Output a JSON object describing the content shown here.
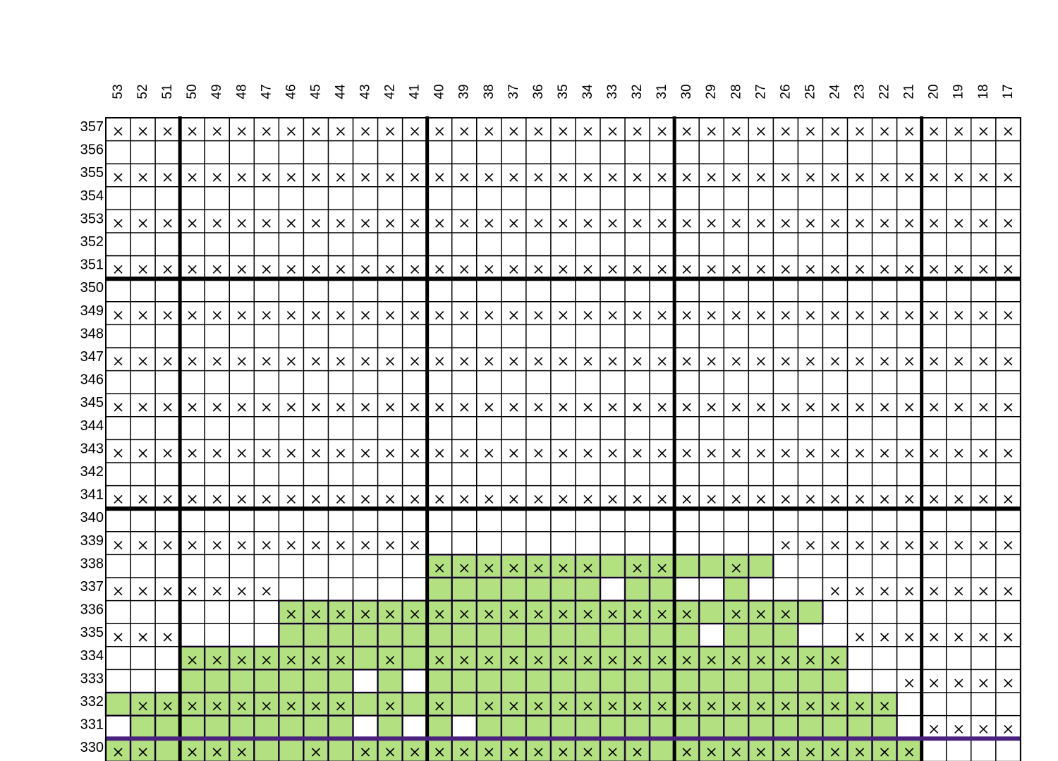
{
  "columns": [
    53,
    52,
    51,
    50,
    49,
    48,
    47,
    46,
    45,
    44,
    43,
    42,
    41,
    40,
    39,
    38,
    37,
    36,
    35,
    34,
    33,
    32,
    31,
    30,
    29,
    28,
    27,
    26,
    25,
    24,
    23,
    22,
    21,
    20,
    19,
    18,
    17
  ],
  "rows": [
    357,
    356,
    355,
    354,
    353,
    352,
    351,
    350,
    349,
    348,
    347,
    346,
    345,
    344,
    343,
    342,
    341,
    340,
    339,
    338,
    337,
    336,
    335,
    334,
    333,
    332,
    331,
    330
  ],
  "row_marks": {
    "357": [
      53,
      52,
      51,
      50,
      49,
      48,
      47,
      46,
      45,
      44,
      43,
      42,
      41,
      40,
      39,
      38,
      37,
      36,
      35,
      34,
      33,
      32,
      31,
      30,
      29,
      28,
      27,
      26,
      25,
      24,
      23,
      22,
      21,
      20,
      19,
      18,
      17
    ],
    "355": [
      53,
      52,
      51,
      50,
      49,
      48,
      47,
      46,
      45,
      44,
      43,
      42,
      41,
      40,
      39,
      38,
      37,
      36,
      35,
      34,
      33,
      32,
      31,
      30,
      29,
      28,
      27,
      26,
      25,
      24,
      23,
      22,
      21,
      20,
      19,
      18,
      17
    ],
    "353": [
      53,
      52,
      51,
      50,
      49,
      48,
      47,
      46,
      45,
      44,
      43,
      42,
      41,
      40,
      39,
      38,
      37,
      36,
      35,
      34,
      33,
      32,
      31,
      30,
      29,
      28,
      27,
      26,
      25,
      24,
      23,
      22,
      21,
      20,
      19,
      18,
      17
    ],
    "351": [
      53,
      52,
      51,
      50,
      49,
      48,
      47,
      46,
      45,
      44,
      43,
      42,
      41,
      40,
      39,
      38,
      37,
      36,
      35,
      34,
      33,
      32,
      31,
      30,
      29,
      28,
      27,
      26,
      25,
      24,
      23,
      22,
      21,
      20,
      19,
      18,
      17
    ],
    "349": [
      53,
      52,
      51,
      50,
      49,
      48,
      47,
      46,
      45,
      44,
      43,
      42,
      41,
      40,
      39,
      38,
      37,
      36,
      35,
      34,
      33,
      32,
      31,
      30,
      29,
      28,
      27,
      26,
      25,
      24,
      23,
      22,
      21,
      20,
      19,
      18,
      17
    ],
    "347": [
      53,
      52,
      51,
      50,
      49,
      48,
      47,
      46,
      45,
      44,
      43,
      42,
      41,
      40,
      39,
      38,
      37,
      36,
      35,
      34,
      33,
      32,
      31,
      30,
      29,
      28,
      27,
      26,
      25,
      24,
      23,
      22,
      21,
      20,
      19,
      18,
      17
    ],
    "345": [
      53,
      52,
      51,
      50,
      49,
      48,
      47,
      46,
      45,
      44,
      43,
      42,
      41,
      40,
      39,
      38,
      37,
      36,
      35,
      34,
      33,
      32,
      31,
      30,
      29,
      28,
      27,
      26,
      25,
      24,
      23,
      22,
      21,
      20,
      19,
      18,
      17
    ],
    "343": [
      53,
      52,
      51,
      50,
      49,
      48,
      47,
      46,
      45,
      44,
      43,
      42,
      41,
      40,
      39,
      38,
      37,
      36,
      35,
      34,
      33,
      32,
      31,
      30,
      29,
      28,
      27,
      26,
      25,
      24,
      23,
      22,
      21,
      20,
      19,
      18,
      17
    ],
    "341": [
      53,
      52,
      51,
      50,
      49,
      48,
      47,
      46,
      45,
      44,
      43,
      42,
      41,
      40,
      39,
      38,
      37,
      36,
      35,
      34,
      33,
      32,
      31,
      30,
      29,
      28,
      27,
      26,
      25,
      24,
      23,
      22,
      21,
      20,
      19,
      18,
      17
    ],
    "339": [
      53,
      52,
      51,
      50,
      49,
      48,
      47,
      46,
      45,
      44,
      43,
      42,
      41,
      26,
      25,
      24,
      23,
      22,
      21,
      20,
      19,
      18,
      17
    ],
    "338": [
      40,
      39,
      38,
      37,
      36,
      35,
      34,
      32,
      31,
      28
    ],
    "337": [
      53,
      52,
      51,
      50,
      49,
      48,
      47,
      24,
      23,
      22,
      21,
      20,
      19,
      18,
      17
    ],
    "336": [
      46,
      45,
      44,
      43,
      42,
      41,
      40,
      39,
      38,
      37,
      36,
      35,
      34,
      33,
      32,
      31,
      30,
      28,
      27,
      26
    ],
    "335": [
      53,
      52,
      51,
      23,
      22,
      21,
      20,
      19,
      18,
      17
    ],
    "334": [
      50,
      49,
      48,
      47,
      46,
      45,
      44,
      42,
      40,
      39,
      38,
      37,
      36,
      35,
      34,
      33,
      32,
      31,
      30,
      29,
      28,
      27,
      26,
      25,
      24
    ],
    "333": [
      21,
      20,
      19,
      18,
      17
    ],
    "332": [
      52,
      51,
      50,
      49,
      48,
      47,
      46,
      45,
      44,
      42,
      40,
      38,
      37,
      36,
      35,
      34,
      33,
      32,
      31,
      30,
      29,
      28,
      27,
      26,
      25,
      24,
      23,
      22
    ],
    "331": [
      20,
      19,
      18,
      17
    ],
    "330": [
      53,
      52,
      50,
      49,
      48,
      45,
      43,
      42,
      41,
      40,
      39,
      38,
      37,
      36,
      35,
      34,
      33,
      32,
      30,
      29,
      28,
      27,
      26,
      25,
      24,
      23,
      22,
      21
    ]
  },
  "highlight_cells": {
    "338": [
      40,
      39,
      38,
      37,
      36,
      35,
      34,
      33,
      32,
      31,
      30,
      29,
      28,
      27
    ],
    "337": [
      40,
      39,
      38,
      37,
      36,
      35,
      34,
      32,
      31,
      28
    ],
    "336": [
      46,
      45,
      44,
      43,
      42,
      41,
      40,
      39,
      38,
      37,
      36,
      35,
      34,
      33,
      32,
      31,
      30,
      29,
      28,
      27,
      26,
      25
    ],
    "335": [
      46,
      45,
      44,
      43,
      42,
      41,
      40,
      39,
      38,
      37,
      36,
      35,
      34,
      33,
      32,
      31,
      30,
      28,
      27,
      26
    ],
    "334": [
      50,
      49,
      48,
      47,
      46,
      45,
      44,
      43,
      42,
      41,
      40,
      39,
      38,
      37,
      36,
      35,
      34,
      33,
      32,
      31,
      30,
      29,
      28,
      27,
      26,
      25,
      24
    ],
    "333": [
      50,
      49,
      48,
      47,
      46,
      45,
      44,
      42,
      40,
      39,
      38,
      37,
      36,
      35,
      34,
      33,
      32,
      31,
      30,
      29,
      28,
      27,
      26,
      25,
      24
    ],
    "332": [
      53,
      52,
      51,
      50,
      49,
      48,
      47,
      46,
      45,
      44,
      43,
      42,
      41,
      40,
      39,
      38,
      37,
      36,
      35,
      34,
      33,
      32,
      31,
      30,
      29,
      28,
      27,
      26,
      25,
      24,
      23,
      22
    ],
    "331": [
      52,
      51,
      50,
      49,
      48,
      47,
      46,
      45,
      44,
      42,
      40,
      38,
      37,
      36,
      35,
      34,
      33,
      32,
      31,
      30,
      29,
      28,
      27,
      26,
      25,
      24,
      23,
      22
    ],
    "330": [
      53,
      52,
      51,
      50,
      49,
      48,
      47,
      46,
      45,
      44,
      43,
      42,
      41,
      40,
      39,
      38,
      37,
      36,
      35,
      34,
      33,
      32,
      31,
      30,
      29,
      28,
      27,
      26,
      25,
      24,
      23,
      22,
      21
    ]
  },
  "colors": {
    "highlight_fill": "#b3e080",
    "highlight_border": "#4b2180",
    "grid_line": "#000000",
    "background": "#ffffff",
    "text": "#000000"
  }
}
